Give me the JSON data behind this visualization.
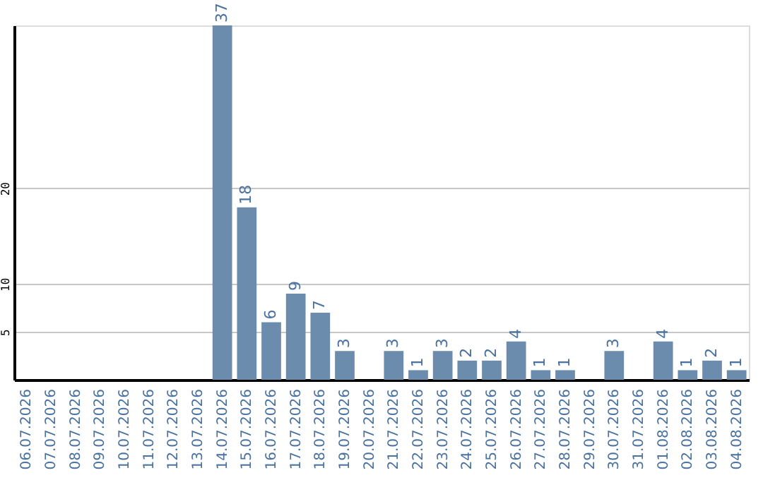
{
  "chart_data": {
    "type": "bar",
    "categories": [
      "06.07.2026",
      "07.07.2026",
      "08.07.2026",
      "09.07.2026",
      "10.07.2026",
      "11.07.2026",
      "12.07.2026",
      "13.07.2026",
      "14.07.2026",
      "15.07.2026",
      "16.07.2026",
      "17.07.2026",
      "18.07.2026",
      "19.07.2026",
      "20.07.2026",
      "21.07.2026",
      "22.07.2026",
      "23.07.2026",
      "24.07.2026",
      "25.07.2026",
      "26.07.2026",
      "27.07.2026",
      "28.07.2026",
      "29.07.2026",
      "30.07.2026",
      "31.07.2026",
      "01.08.2026",
      "02.08.2026",
      "03.08.2026",
      "04.08.2026"
    ],
    "values": [
      null,
      null,
      null,
      null,
      null,
      null,
      null,
      null,
      37,
      18,
      6,
      9,
      7,
      3,
      null,
      3,
      1,
      3,
      2,
      2,
      4,
      1,
      1,
      null,
      3,
      null,
      4,
      1,
      2,
      1
    ],
    "color": "#6b8cac",
    "ylim": [
      0,
      37
    ],
    "yticks": [
      5,
      10,
      20
    ],
    "grid": "y",
    "data_labels": true
  }
}
